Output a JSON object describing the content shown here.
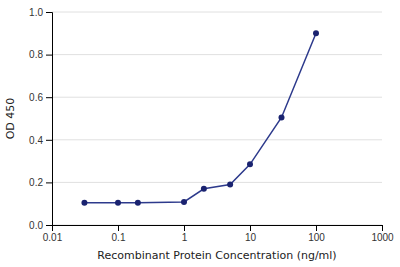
{
  "chart_data": {
    "type": "line",
    "x": [
      0.031,
      0.1,
      0.2,
      1.0,
      2.0,
      5.0,
      10.0,
      30.0,
      100.0
    ],
    "values": [
      0.105,
      0.105,
      0.105,
      0.108,
      0.17,
      0.19,
      0.285,
      0.505,
      0.9
    ],
    "color": "#2d3a8c",
    "colors": [
      "#1a2370",
      "#1a2370",
      "#1a2370",
      "#1a2370",
      "#1a2370",
      "#1a2370",
      "#1a2370",
      "#1a2370",
      "#1a2370"
    ],
    "marker": "circle",
    "xlabel": "Recombinant Protein Concentration (ng/ml)",
    "ylabel": "OD 450",
    "xlim": [
      0.01,
      1000
    ],
    "ylim": [
      0,
      1
    ],
    "xticks": [
      0.01,
      0.1,
      1,
      10,
      100,
      1000
    ],
    "yticks": [
      {
        "value": 0,
        "label": "0.0"
      },
      0.2,
      0.4,
      0.6,
      0.8,
      {
        "value": 1,
        "label": "1.0"
      }
    ],
    "log": "x",
    "grid": true
  }
}
